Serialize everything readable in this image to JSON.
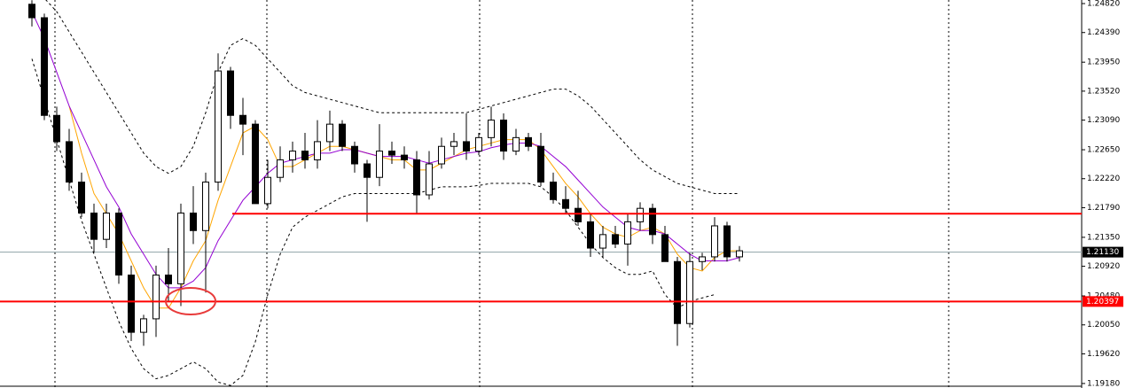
{
  "chart_data": {
    "type": "candlestick",
    "open": [
      1.2481,
      1.2461,
      1.2316,
      1.2277,
      1.2217,
      1.2171,
      1.2132,
      1.2171,
      1.2079,
      1.1994,
      1.2014,
      1.2079,
      1.2066,
      1.2171,
      1.2145,
      1.2217,
      1.2382,
      1.2316,
      1.2303,
      1.2185,
      1.2224,
      1.225,
      1.2263,
      1.225,
      1.2277,
      1.2303,
      1.227,
      1.2244,
      1.2224,
      1.2263,
      1.2257,
      1.225,
      1.2198,
      1.2244,
      1.227,
      1.2277,
      1.2263,
      1.2283,
      1.2309,
      1.2263,
      1.2283,
      1.227,
      1.2217,
      1.2191,
      1.2178,
      1.2158,
      1.2119,
      1.2139,
      1.2125,
      1.2158,
      1.2178,
      1.2139,
      1.2099,
      1.2007,
      1.2099,
      1.2106,
      1.2152,
      1.2106
    ],
    "high": [
      1.2487,
      1.2467,
      1.2329,
      1.2296,
      1.2231,
      1.2185,
      1.2185,
      1.2178,
      1.2093,
      1.202,
      1.2093,
      1.2119,
      1.2185,
      1.2211,
      1.2231,
      1.2408,
      1.2388,
      1.2342,
      1.2309,
      1.225,
      1.227,
      1.2277,
      1.229,
      1.2309,
      1.2323,
      1.2309,
      1.2277,
      1.225,
      1.2303,
      1.2277,
      1.227,
      1.2263,
      1.2263,
      1.2283,
      1.229,
      1.2319,
      1.229,
      1.2329,
      1.2319,
      1.2296,
      1.229,
      1.229,
      1.2231,
      1.2211,
      1.2204,
      1.2171,
      1.2152,
      1.2152,
      1.2171,
      1.2187,
      1.2185,
      1.2152,
      1.2106,
      1.2112,
      1.2112,
      1.2165,
      1.2158,
      1.2122
    ],
    "low": [
      1.2448,
      1.2309,
      1.2263,
      1.2204,
      1.2165,
      1.2112,
      1.2119,
      1.2066,
      1.1981,
      1.1974,
      1.1987,
      1.204,
      1.2033,
      1.2125,
      1.2053,
      1.2204,
      1.2296,
      1.2257,
      1.2185,
      1.2178,
      1.2217,
      1.2231,
      1.2237,
      1.2237,
      1.2263,
      1.2263,
      1.2231,
      1.2158,
      1.2211,
      1.2244,
      1.2237,
      1.2171,
      1.2191,
      1.2237,
      1.2257,
      1.225,
      1.2257,
      1.227,
      1.225,
      1.2257,
      1.2263,
      1.2211,
      1.2185,
      1.2171,
      1.2152,
      1.2106,
      1.2106,
      1.2119,
      1.2093,
      1.2145,
      1.2125,
      1.2099,
      1.1974,
      1.2001,
      1.2086,
      1.2099,
      1.2099,
      1.2099
    ],
    "close": [
      1.2461,
      1.2316,
      1.2277,
      1.2217,
      1.2171,
      1.2132,
      1.2171,
      1.2079,
      1.1994,
      1.2014,
      1.2079,
      1.2066,
      1.2171,
      1.2145,
      1.2217,
      1.2382,
      1.2316,
      1.2303,
      1.2185,
      1.2224,
      1.225,
      1.2263,
      1.225,
      1.2277,
      1.2303,
      1.227,
      1.2244,
      1.2224,
      1.2263,
      1.2257,
      1.225,
      1.2198,
      1.2244,
      1.227,
      1.2277,
      1.2263,
      1.2283,
      1.2309,
      1.2263,
      1.2283,
      1.227,
      1.2217,
      1.2191,
      1.2178,
      1.2158,
      1.2119,
      1.2139,
      1.2125,
      1.2158,
      1.2178,
      1.2139,
      1.2099,
      1.2007,
      1.2099,
      1.2106,
      1.2152,
      1.2106,
      1.2115
    ],
    "series": [
      {
        "color": "#ffa500",
        "style": "solid",
        "values": [
          null,
          null,
          null,
          1.233,
          1.226,
          1.22,
          1.217,
          1.214,
          1.21,
          1.206,
          1.203,
          1.203,
          1.206,
          1.21,
          1.213,
          1.219,
          1.224,
          1.229,
          1.23,
          1.228,
          1.224,
          1.224,
          1.225,
          1.226,
          1.227,
          1.227,
          1.2265,
          1.226,
          1.2255,
          1.225,
          1.225,
          1.2235,
          1.2235,
          1.2245,
          1.2255,
          1.2265,
          1.227,
          1.2275,
          1.228,
          1.228,
          1.228,
          1.2265,
          1.224,
          1.2215,
          1.2195,
          1.217,
          1.215,
          1.214,
          1.2135,
          1.2145,
          1.215,
          1.214,
          1.211,
          1.209,
          1.2085,
          1.2105,
          1.2115,
          1.2115
        ]
      },
      {
        "color": "#9400d3",
        "style": "solid",
        "values": [
          1.247,
          1.243,
          1.238,
          1.233,
          1.229,
          1.225,
          1.221,
          1.218,
          1.214,
          1.211,
          1.208,
          1.206,
          1.206,
          1.207,
          1.209,
          1.213,
          1.216,
          1.219,
          1.221,
          1.223,
          1.2245,
          1.225,
          1.2255,
          1.226,
          1.226,
          1.2265,
          1.2265,
          1.226,
          1.2255,
          1.2255,
          1.2255,
          1.225,
          1.2245,
          1.225,
          1.2255,
          1.226,
          1.2262,
          1.2268,
          1.2272,
          1.2275,
          1.2275,
          1.227,
          1.2255,
          1.224,
          1.222,
          1.22,
          1.218,
          1.2165,
          1.215,
          1.2145,
          1.2145,
          1.214,
          1.2125,
          1.211,
          1.21,
          1.21,
          1.21,
          1.2105
        ]
      },
      {
        "color": "#000000",
        "style": "dashed",
        "values": [
          1.25,
          1.249,
          1.247,
          1.244,
          1.241,
          1.238,
          1.235,
          1.232,
          1.229,
          1.226,
          1.224,
          1.223,
          1.224,
          1.227,
          1.232,
          1.238,
          1.242,
          1.243,
          1.242,
          1.24,
          1.238,
          1.236,
          1.235,
          1.2345,
          1.234,
          1.2335,
          1.233,
          1.2325,
          1.232,
          1.232,
          1.232,
          1.232,
          1.232,
          1.232,
          1.232,
          1.232,
          1.2325,
          1.233,
          1.2335,
          1.234,
          1.2345,
          1.235,
          1.2355,
          1.2355,
          1.2345,
          1.233,
          1.231,
          1.229,
          1.227,
          1.225,
          1.2235,
          1.2225,
          1.2215,
          1.221,
          1.2205,
          1.22,
          1.22,
          1.22
        ]
      },
      {
        "color": "#000000",
        "style": "dashed",
        "values": [
          1.24,
          1.234,
          1.228,
          1.222,
          1.216,
          1.211,
          1.206,
          1.201,
          1.197,
          1.194,
          1.1925,
          1.193,
          1.194,
          1.195,
          1.194,
          1.192,
          1.1915,
          1.193,
          1.198,
          1.205,
          1.211,
          1.215,
          1.2165,
          1.2175,
          1.2185,
          1.2195,
          1.22,
          1.22,
          1.22,
          1.22,
          1.22,
          1.22,
          1.2205,
          1.221,
          1.221,
          1.221,
          1.2212,
          1.2215,
          1.2215,
          1.2215,
          1.2215,
          1.221,
          1.2195,
          1.2175,
          1.215,
          1.2125,
          1.2105,
          1.209,
          1.208,
          1.208,
          1.2085,
          1.205,
          1.203,
          1.204,
          1.2045,
          1.205,
          null,
          null
        ]
      }
    ],
    "levels": [
      {
        "value": 1.20397,
        "color": "#ff0000"
      },
      {
        "value": 1.217,
        "color": "#ff0000"
      }
    ],
    "current_price": {
      "value": 1.2113,
      "label": "1.21130"
    },
    "ylim": [
      1.19113,
      1.24873
    ],
    "yticks": [
      {
        "value": 1.2482,
        "label": "1.24820"
      },
      {
        "value": 1.2439,
        "label": "1.24390"
      },
      {
        "value": 1.2395,
        "label": "1.23950"
      },
      {
        "value": 1.2352,
        "label": "1.23520"
      },
      {
        "value": 1.2309,
        "label": "1.23090"
      },
      {
        "value": 1.2265,
        "label": "1.22650"
      },
      {
        "value": 1.2222,
        "label": "1.22220"
      },
      {
        "value": 1.2179,
        "label": "1.21790"
      },
      {
        "value": 1.2135,
        "label": "1.21350"
      },
      {
        "value": 1.2092,
        "label": "1.20920"
      },
      {
        "value": 1.2048,
        "label": "1.20480"
      },
      {
        "value": 1.2005,
        "label": "1.20050"
      },
      {
        "value": 1.1962,
        "label": "1.19620"
      },
      {
        "value": 1.1918,
        "label": "1.19180"
      }
    ]
  }
}
